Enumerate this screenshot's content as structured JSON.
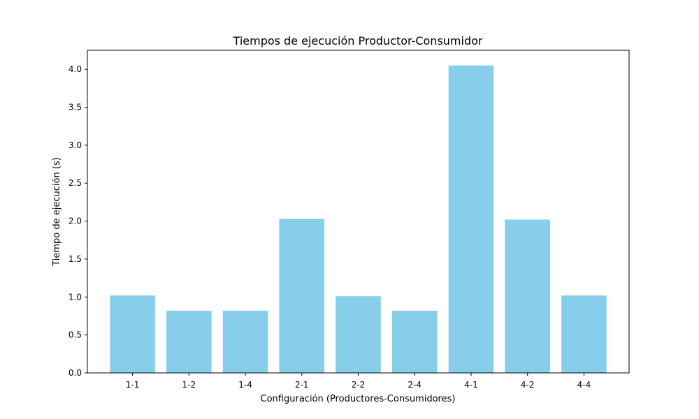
{
  "chart_data": {
    "type": "bar",
    "title": "Tiempos de ejecución Productor-Consumidor",
    "xlabel": "Configuración (Productores-Consumidores)",
    "ylabel": "Tiempo de ejecución (s)",
    "categories": [
      "1-1",
      "1-2",
      "1-4",
      "2-1",
      "2-2",
      "2-4",
      "4-1",
      "4-2",
      "4-4"
    ],
    "values": [
      1.02,
      0.82,
      0.82,
      2.03,
      1.01,
      0.82,
      4.05,
      2.02,
      1.02
    ],
    "ylim": [
      0,
      4.25
    ],
    "yticks": [
      0.0,
      0.5,
      1.0,
      1.5,
      2.0,
      2.5,
      3.0,
      3.5,
      4.0
    ],
    "ytick_labels": [
      "0.0",
      "0.5",
      "1.0",
      "1.5",
      "2.0",
      "2.5",
      "3.0",
      "3.5",
      "4.0"
    ],
    "grid": false,
    "bar_color": "#87CEEB",
    "axis_color": "#000000"
  }
}
